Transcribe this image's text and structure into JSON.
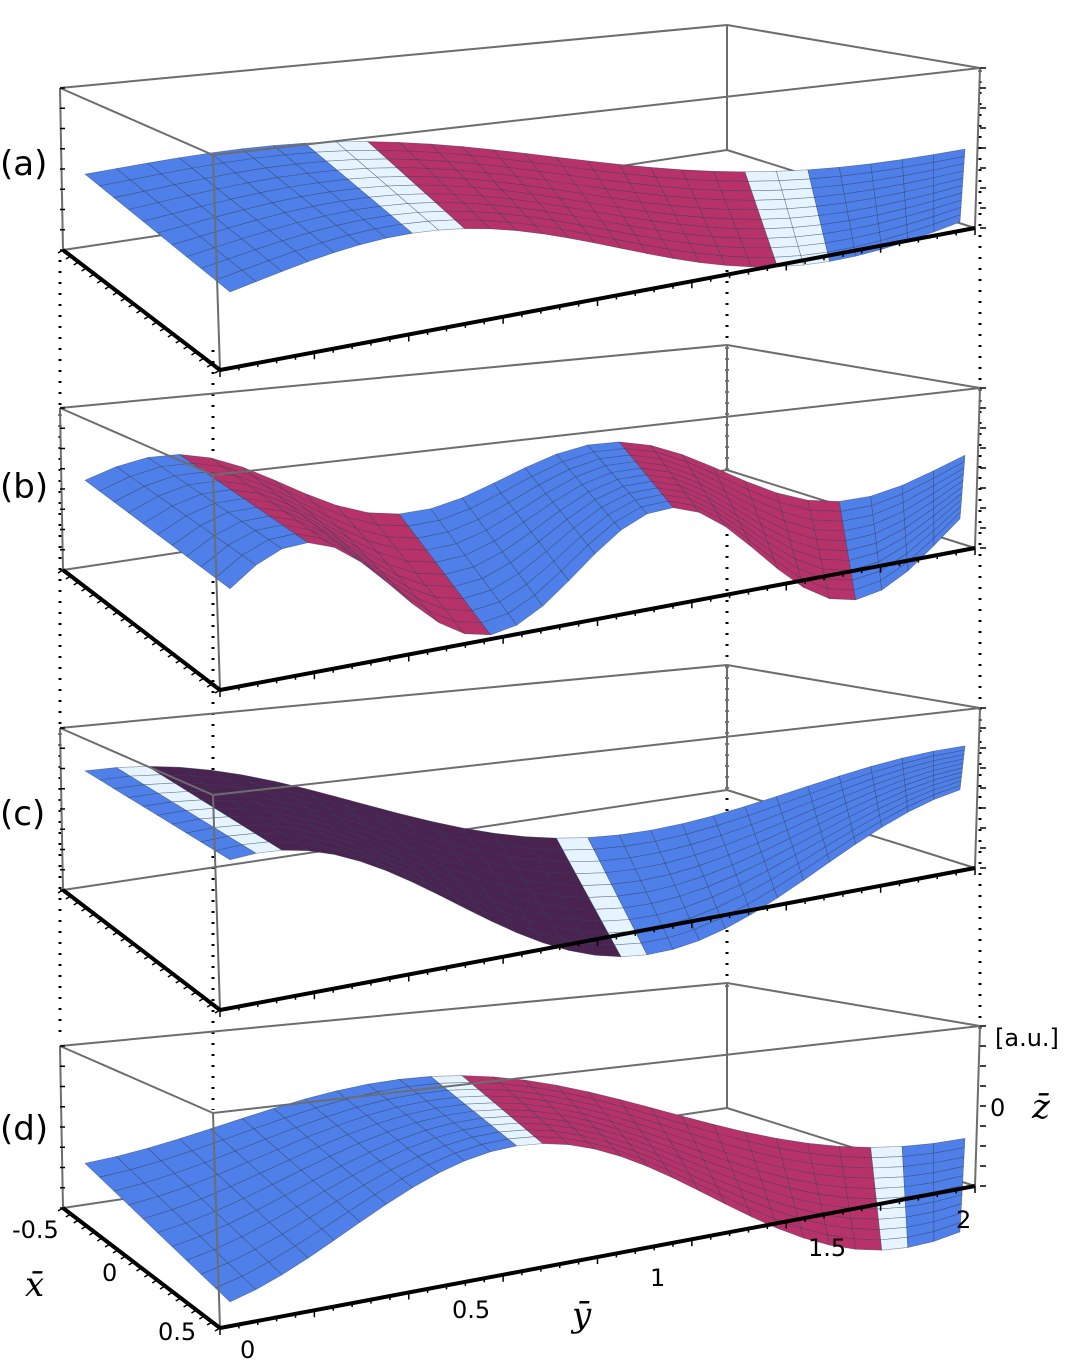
{
  "panels": [
    {
      "label": "(a)"
    },
    {
      "label": "(b)"
    },
    {
      "label": "(c)"
    },
    {
      "label": "(d)"
    }
  ],
  "axes": {
    "x": {
      "symbol": "x̄",
      "ticks": [
        "-0.5",
        "0",
        "0.5"
      ]
    },
    "y": {
      "symbol": "ȳ",
      "ticks": [
        "0",
        "0.5",
        "1",
        "1.5",
        "2"
      ]
    },
    "z": {
      "symbol": "z̄",
      "unit": "[a.u.]",
      "ticks": [
        "0"
      ]
    }
  },
  "colors": {
    "surface_top_light": "#e6f4ff",
    "surface_top_mid": "#9ed2f6",
    "surface_top_dark": "#4f7fe8",
    "surface_under": "#b8326a",
    "surface_under_dark": "#4a2350",
    "box_line": "#6d6d6d",
    "mesh_line": "#2b3b55"
  }
}
